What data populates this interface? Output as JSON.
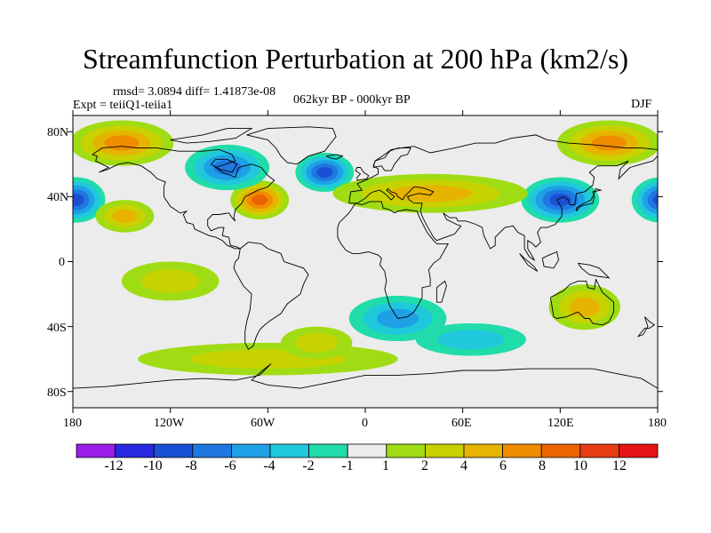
{
  "figure": {
    "title": "Streamfunction Perturbation at 200 hPa (km2/s)",
    "rmsd_text": "rmsd= 3.0894 diff= 1.41873e-08",
    "experiment_text": "Expt = teiiQ1-teiia1",
    "period_text": "062kyr BP - 000kyr BP",
    "season": "DJF"
  },
  "axes": {
    "lat_labels": [
      "80N",
      "40N",
      "0",
      "40S",
      "80S"
    ],
    "lon_labels": [
      "180",
      "120W",
      "60W",
      "0",
      "60E",
      "120E",
      "180"
    ]
  },
  "colorbar": {
    "labels": [
      "-12",
      "-10",
      "-8",
      "-6",
      "-4",
      "-2",
      "-1",
      "1",
      "2",
      "4",
      "6",
      "8",
      "10",
      "12"
    ],
    "colors": [
      "#9a1ee8",
      "#2828e0",
      "#1a50d6",
      "#1e78e0",
      "#1ea0e6",
      "#20c8dc",
      "#20dcaa",
      "#ececec",
      "#a0dc14",
      "#c8d200",
      "#e6b400",
      "#f08c00",
      "#ec6400",
      "#e83c14",
      "#e61414"
    ]
  },
  "chart_data": {
    "type": "filled-contour-map",
    "title": "Streamfunction Perturbation at 200 hPa (km2/s)",
    "lon_range": [
      -180,
      180
    ],
    "lat_range": [
      -90,
      90
    ],
    "levels": [
      -12,
      -10,
      -8,
      -6,
      -4,
      -2,
      -1,
      1,
      2,
      4,
      6,
      8,
      10,
      12
    ],
    "features": [
      {
        "name": "northeast-pacific-high",
        "lon": -150,
        "lat": 73,
        "value": 6,
        "rx": 32,
        "ry": 14
      },
      {
        "name": "siberia-high",
        "lon": 150,
        "lat": 73,
        "value": 6,
        "rx": 32,
        "ry": 14
      },
      {
        "name": "us-east-coast-high",
        "lon": -65,
        "lat": 38,
        "value": 9,
        "rx": 18,
        "ry": 12
      },
      {
        "name": "west-pacific-low",
        "lon": 120,
        "lat": 38,
        "value": -8,
        "rx": 24,
        "ry": 14
      },
      {
        "name": "east-pacific-low",
        "lon": -178,
        "lat": 38,
        "value": -8,
        "rx": 18,
        "ry": 14
      },
      {
        "name": "north-atlantic-low",
        "lon": -25,
        "lat": 55,
        "value": -8,
        "rx": 18,
        "ry": 12
      },
      {
        "name": "canada-low",
        "lon": -85,
        "lat": 58,
        "value": -6,
        "rx": 26,
        "ry": 14
      },
      {
        "name": "europe-asia-high",
        "lon": 40,
        "lat": 42,
        "value": 5,
        "rx": 60,
        "ry": 12
      },
      {
        "name": "north-pacific-high",
        "lon": -148,
        "lat": 28,
        "value": 4,
        "rx": 18,
        "ry": 10
      },
      {
        "name": "south-pacific-high",
        "lon": -120,
        "lat": -12,
        "value": 3,
        "rx": 30,
        "ry": 12
      },
      {
        "name": "southern-ocean-band",
        "lon": -60,
        "lat": -60,
        "value": 2,
        "rx": 80,
        "ry": 10
      },
      {
        "name": "southern-africa-low",
        "lon": 20,
        "lat": -35,
        "value": -4,
        "rx": 30,
        "ry": 14
      },
      {
        "name": "indian-ocean-low",
        "lon": 65,
        "lat": -48,
        "value": -3,
        "rx": 34,
        "ry": 10
      },
      {
        "name": "australia-high",
        "lon": 135,
        "lat": -28,
        "value": 5,
        "rx": 22,
        "ry": 14
      },
      {
        "name": "south-atlantic-high",
        "lon": -30,
        "lat": -50,
        "value": 3,
        "rx": 22,
        "ry": 10
      }
    ]
  }
}
